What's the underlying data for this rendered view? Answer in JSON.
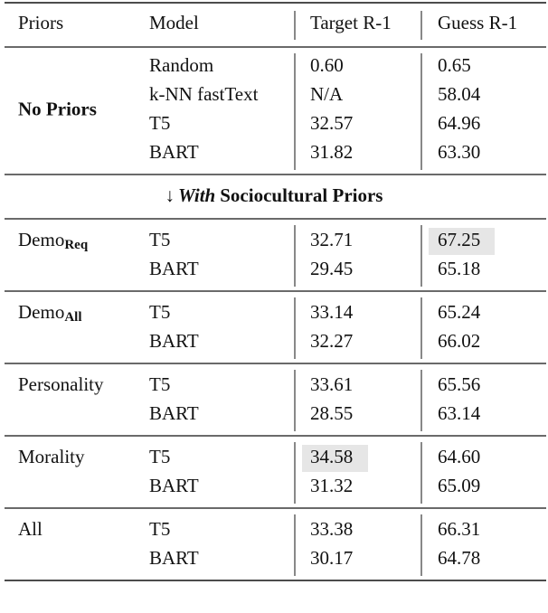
{
  "table": {
    "header": [
      "Priors",
      "Model",
      "Target R-1",
      "Guess R-1"
    ],
    "groups": [
      {
        "prior": "No Priors",
        "bold": true,
        "rows": [
          {
            "model": "Random",
            "target": "0.60",
            "guess": "0.65"
          },
          {
            "model": "k-NN fastText",
            "target": "N/A",
            "guess": "58.04"
          },
          {
            "model": "T5",
            "target": "32.57",
            "guess": "64.96"
          },
          {
            "model": "BART",
            "target": "31.82",
            "guess": "63.30"
          }
        ]
      },
      {
        "section": {
          "arrow": "↓",
          "emphasis": "With",
          "text": "Sociocultural Priors"
        }
      },
      {
        "prior": "Demo",
        "subscript": "Req",
        "rows": [
          {
            "model": "T5",
            "target": "32.71",
            "guess": "67.25",
            "highlight": "guess"
          },
          {
            "model": "BART",
            "target": "29.45",
            "guess": "65.18"
          }
        ]
      },
      {
        "prior": "Demo",
        "subscript": "All",
        "rows": [
          {
            "model": "T5",
            "target": "33.14",
            "guess": "65.24"
          },
          {
            "model": "BART",
            "target": "32.27",
            "guess": "66.02"
          }
        ]
      },
      {
        "prior": "Personality",
        "rows": [
          {
            "model": "T5",
            "target": "33.61",
            "guess": "65.56"
          },
          {
            "model": "BART",
            "target": "28.55",
            "guess": "63.14"
          }
        ]
      },
      {
        "prior": "Morality",
        "rows": [
          {
            "model": "T5",
            "target": "34.58",
            "guess": "64.60",
            "highlight": "target"
          },
          {
            "model": "BART",
            "target": "31.32",
            "guess": "65.09"
          }
        ]
      },
      {
        "prior": "All",
        "rows": [
          {
            "model": "T5",
            "target": "33.38",
            "guess": "66.31"
          },
          {
            "model": "BART",
            "target": "30.17",
            "guess": "64.78"
          }
        ]
      }
    ]
  }
}
